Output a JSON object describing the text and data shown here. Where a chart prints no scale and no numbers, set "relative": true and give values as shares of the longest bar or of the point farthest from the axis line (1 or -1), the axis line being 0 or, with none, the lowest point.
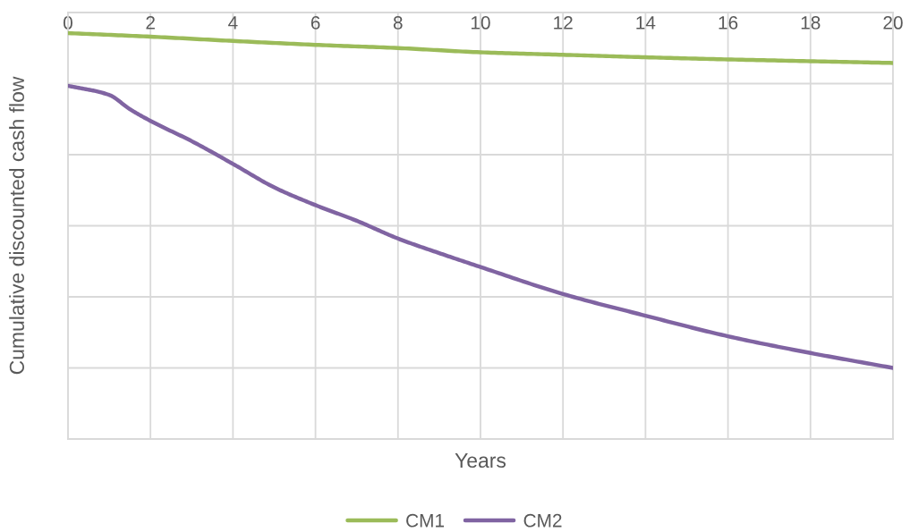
{
  "chart_data": {
    "type": "line",
    "xlabel": "Years",
    "ylabel": "Cumulative discounted cash flow",
    "relative": true,
    "xlim": [
      0,
      20
    ],
    "xticks": [
      0,
      2,
      4,
      6,
      8,
      10,
      12,
      14,
      16,
      18,
      20
    ],
    "tick_labels": "x",
    "grid": true,
    "legend": "bottom",
    "series": [
      {
        "name": "CM1",
        "color": "#9bbb59",
        "x": [
          0,
          2,
          4,
          6,
          8,
          10,
          12,
          14,
          16,
          18,
          20
        ],
        "values": [
          -0.058,
          -0.068,
          -0.08,
          -0.091,
          -0.1,
          -0.112,
          -0.119,
          -0.126,
          -0.132,
          -0.137,
          -0.142
        ]
      },
      {
        "name": "CM2",
        "color": "#8064a2",
        "x": [
          0,
          1,
          1.5,
          2,
          3,
          4,
          5,
          6,
          7,
          8,
          9,
          10,
          12,
          14,
          16,
          18,
          20
        ],
        "values": [
          -0.206,
          -0.232,
          -0.272,
          -0.305,
          -0.362,
          -0.426,
          -0.492,
          -0.542,
          -0.586,
          -0.636,
          -0.677,
          -0.716,
          -0.792,
          -0.853,
          -0.911,
          -0.958,
          -1.0
        ]
      }
    ]
  }
}
